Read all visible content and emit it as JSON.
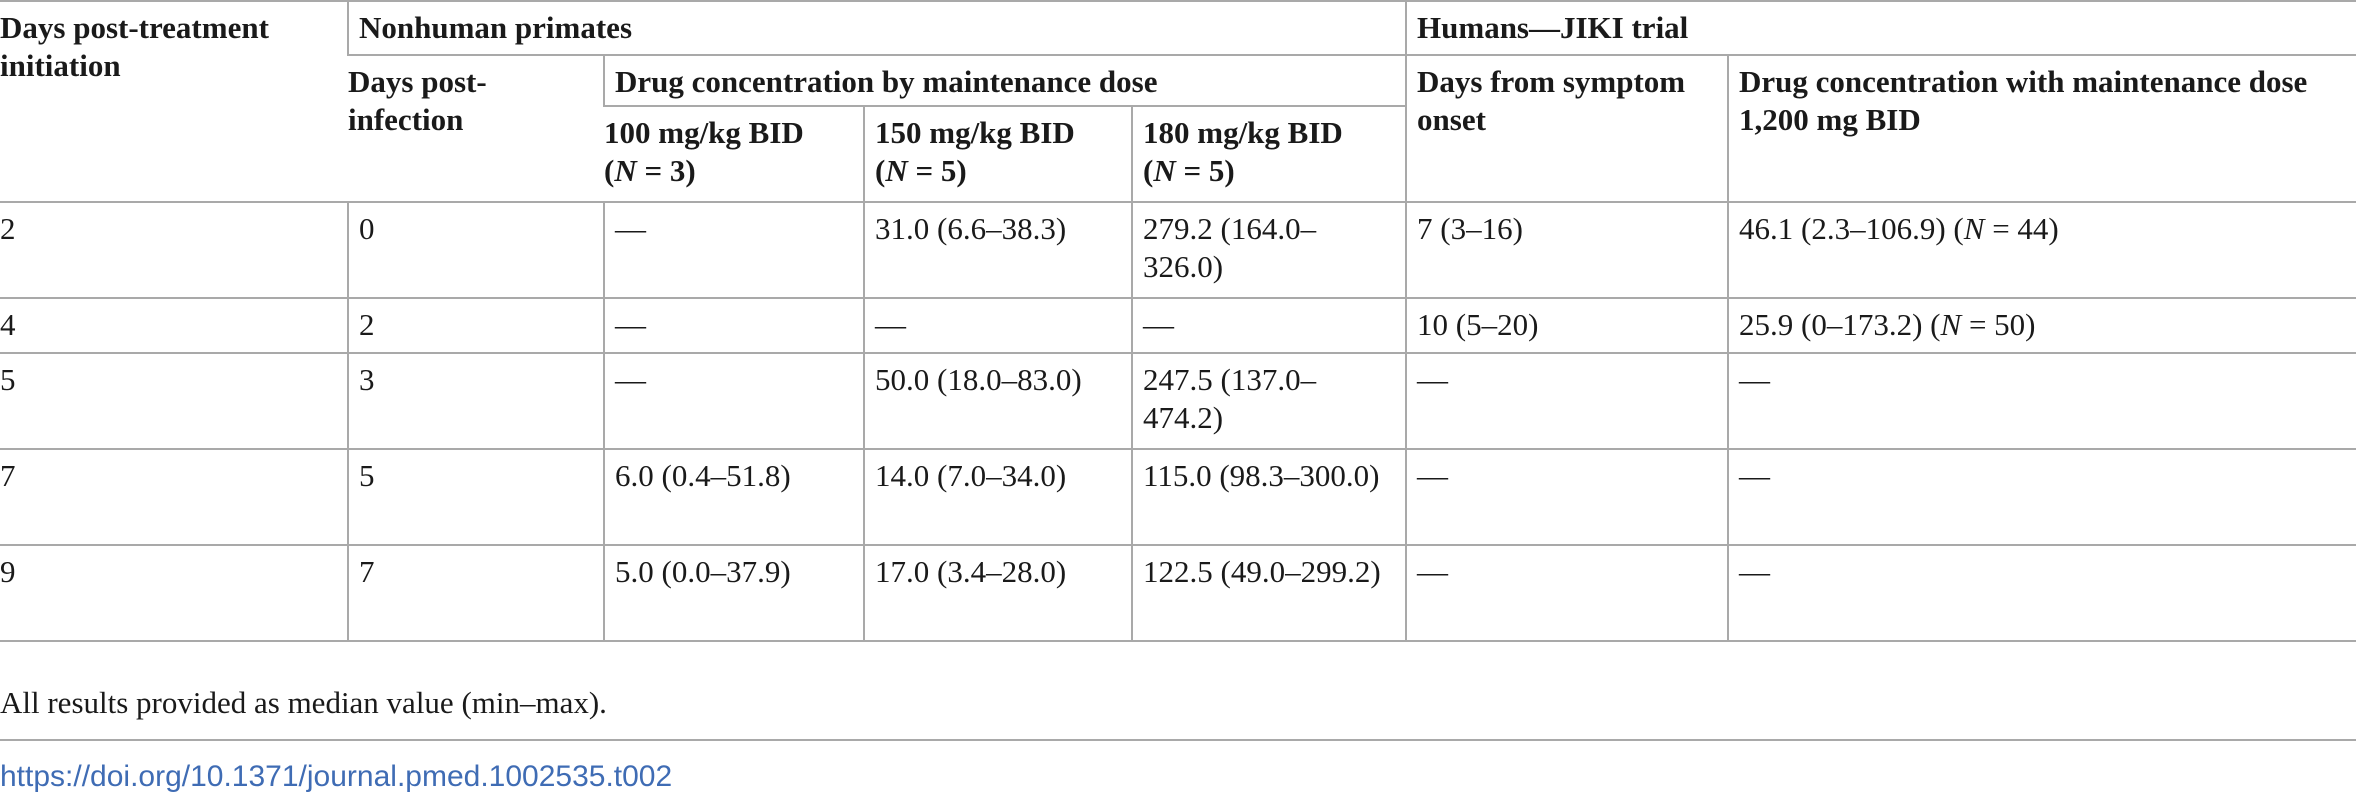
{
  "table": {
    "headers": {
      "col1": "Days post-treatment initiation",
      "nhp_group": "Nonhuman primates",
      "humans_group": "Humans—JIKI trial",
      "days_post_infection": "Days post-infection",
      "drug_conc_group": "Drug concentration by maintenance dose",
      "dose100": "100 mg/kg BID",
      "dose150": "150 mg/kg BID",
      "dose180": "180 mg/kg BID",
      "n_prefix": "(",
      "n_letter": "N",
      "n3": " = 3)",
      "n5": " = 5)",
      "days_symptom": "Days from symptom onset",
      "human_conc": "Drug concentration with maintenance dose 1,200 mg BID"
    },
    "rows": [
      {
        "d_treat": "2",
        "d_inf": "0",
        "c100": "—",
        "c150": "31.0 (6.6–38.3)",
        "c180": "279.2 (164.0–326.0)",
        "d_sym": "7 (3–16)",
        "h_val": "46.1 (2.3–106.9) (",
        "h_n": " = 44)"
      },
      {
        "d_treat": "4",
        "d_inf": "2",
        "c100": "—",
        "c150": "—",
        "c180": "—",
        "d_sym": "10 (5–20)",
        "h_val": "25.9 (0–173.2) (",
        "h_n": " = 50)"
      },
      {
        "d_treat": "5",
        "d_inf": "3",
        "c100": "—",
        "c150": "50.0 (18.0–83.0)",
        "c180": "247.5 (137.0–474.2)",
        "d_sym": "—",
        "h_val": "—",
        "h_n": ""
      },
      {
        "d_treat": "7",
        "d_inf": "5",
        "c100": "6.0 (0.4–51.8)",
        "c150": "14.0 (7.0–34.0)",
        "c180": "115.0 (98.3–300.0)",
        "d_sym": "—",
        "h_val": "—",
        "h_n": ""
      },
      {
        "d_treat": "9",
        "d_inf": "7",
        "c100": "5.0 (0.0–37.9)",
        "c150": "17.0 (3.4–28.0)",
        "c180": "122.5 (49.0–299.2)",
        "d_sym": "—",
        "h_val": "—",
        "h_n": ""
      }
    ],
    "n_letter": "N"
  },
  "footnote": "All results provided as median value (min–max).",
  "doi": "https://doi.org/10.1371/journal.pmed.1002535.t002"
}
